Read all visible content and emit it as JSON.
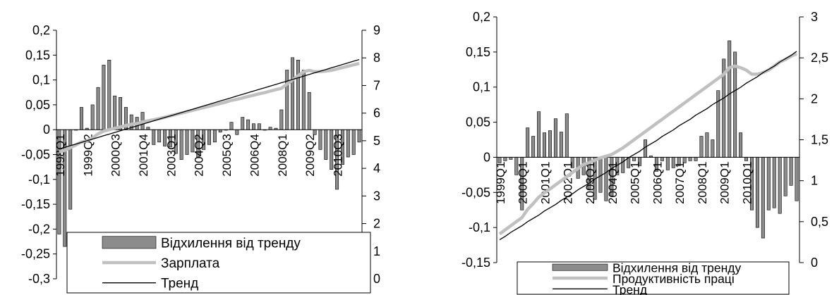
{
  "chart_data": [
    {
      "type": "bar",
      "title": "",
      "ylim_left": [
        -0.3,
        0.2
      ],
      "yticks_left": [
        "0,2",
        "0,15",
        "0,1",
        "0,05",
        "0",
        "-0,05",
        "-0,1",
        "-0,15",
        "-0,2",
        "-0,25",
        "-0,3"
      ],
      "ylim_right": [
        0,
        9
      ],
      "yticks_right": [
        "9",
        "8",
        "7",
        "6",
        "5",
        "4",
        "3",
        "2",
        "1",
        "0"
      ],
      "x_tick_labels": [
        "1998Q1",
        "1999Q2",
        "2000Q3",
        "2001Q4",
        "2003Q1",
        "2004Q2",
        "2005Q3",
        "2006Q4",
        "2008Q1",
        "2009Q2",
        "2010Q3"
      ],
      "x_tick_index": [
        0,
        5,
        10,
        15,
        20,
        25,
        30,
        35,
        40,
        45,
        50
      ],
      "legend": [
        "Відхилення від тренду",
        "Зарплата",
        "Тренд"
      ],
      "series": [
        {
          "name": "Відхилення від тренду",
          "axis": "left",
          "values": [
            -0.21,
            -0.235,
            -0.16,
            0.0,
            0.045,
            0.003,
            0.05,
            0.085,
            0.13,
            0.14,
            0.068,
            0.065,
            0.045,
            0.03,
            0.025,
            0.035,
            0.005,
            -0.03,
            -0.025,
            -0.033,
            -0.035,
            -0.048,
            -0.06,
            -0.05,
            -0.045,
            -0.055,
            -0.04,
            -0.03,
            -0.025,
            -0.005,
            0.0,
            0.015,
            -0.01,
            0.025,
            0.02,
            0.012,
            0.012,
            0.0,
            0.005,
            0.003,
            0.04,
            0.12,
            0.145,
            0.14,
            0.12,
            0.075,
            -0.01,
            -0.04,
            -0.06,
            -0.08,
            -0.12,
            -0.07,
            -0.055,
            -0.05,
            -0.025
          ]
        },
        {
          "name": "Зарплата",
          "axis": "right",
          "values": [
            4.6,
            4.65,
            4.75,
            4.85,
            4.95,
            5.0,
            5.1,
            5.25,
            5.35,
            5.4,
            5.45,
            5.5,
            5.55,
            5.6,
            5.62,
            5.68,
            5.72,
            5.76,
            5.8,
            5.85,
            5.9,
            5.95,
            6.0,
            6.05,
            6.1,
            6.15,
            6.2,
            6.25,
            6.3,
            6.35,
            6.4,
            6.46,
            6.5,
            6.55,
            6.6,
            6.65,
            6.7,
            6.74,
            6.8,
            6.85,
            6.9,
            7.05,
            7.2,
            7.35,
            7.5,
            7.55,
            7.5,
            7.5,
            7.52,
            7.55,
            7.6,
            7.65,
            7.7,
            7.75,
            7.8
          ]
        },
        {
          "name": "Тренд",
          "axis": "right",
          "values": [
            4.7,
            4.76,
            4.82,
            4.88,
            4.94,
            5.0,
            5.06,
            5.12,
            5.18,
            5.24,
            5.3,
            5.36,
            5.42,
            5.48,
            5.54,
            5.6,
            5.66,
            5.72,
            5.78,
            5.84,
            5.9,
            5.96,
            6.02,
            6.08,
            6.14,
            6.2,
            6.26,
            6.32,
            6.38,
            6.44,
            6.5,
            6.56,
            6.62,
            6.68,
            6.74,
            6.8,
            6.86,
            6.92,
            6.98,
            7.04,
            7.1,
            7.16,
            7.22,
            7.28,
            7.34,
            7.4,
            7.46,
            7.52,
            7.58,
            7.64,
            7.7,
            7.76,
            7.82,
            7.88,
            7.94
          ]
        }
      ]
    },
    {
      "type": "bar",
      "title": "",
      "ylim_left": [
        -0.15,
        0.2
      ],
      "yticks_left": [
        "0,2",
        "0,15",
        "0,1",
        "0,05",
        "0",
        "-0,05",
        "-0,1",
        "-0,15"
      ],
      "ylim_right": [
        0,
        3
      ],
      "yticks_right": [
        "3",
        "2,5",
        "2",
        "1,5",
        "1",
        "0,5",
        "0"
      ],
      "x_tick_labels": [
        "1999Q1",
        "2000Q1",
        "2001Q1",
        "2002Q1",
        "2003Q1",
        "2004Q1",
        "2005Q1",
        "2006Q1",
        "2007Q1",
        "2008Q1",
        "2009Q1",
        "2010Q1"
      ],
      "x_tick_index": [
        0,
        4,
        8,
        12,
        16,
        20,
        24,
        28,
        32,
        36,
        40,
        44
      ],
      "legend": [
        "Відхилення від тренду",
        "Продуктивність праці",
        "Тренд"
      ],
      "series": [
        {
          "name": "Відхилення від тренду",
          "axis": "left",
          "values": [
            -0.008,
            -0.005,
            -0.003,
            -0.025,
            -0.075,
            0.042,
            0.03,
            0.065,
            0.035,
            0.038,
            0.055,
            0.036,
            0.062,
            -0.015,
            -0.03,
            -0.025,
            -0.045,
            -0.06,
            -0.05,
            -0.062,
            -0.055,
            -0.025,
            -0.022,
            -0.015,
            -0.005,
            -0.012,
            0.025,
            0.002,
            -0.02,
            -0.005,
            -0.018,
            -0.015,
            -0.012,
            -0.008,
            -0.005,
            -0.005,
            0.03,
            0.035,
            0.025,
            0.095,
            0.14,
            0.166,
            0.15,
            0.035,
            -0.005,
            -0.075,
            -0.1,
            -0.115,
            -0.075,
            -0.072,
            -0.08,
            -0.055,
            -0.04,
            -0.062
          ]
        },
        {
          "name": "Продуктивність праці",
          "axis": "right",
          "values": [
            0.35,
            0.4,
            0.45,
            0.5,
            0.55,
            0.65,
            0.72,
            0.8,
            0.85,
            0.9,
            0.95,
            1.0,
            1.05,
            1.1,
            1.15,
            1.2,
            1.22,
            1.25,
            1.28,
            1.3,
            1.32,
            1.36,
            1.4,
            1.45,
            1.5,
            1.55,
            1.6,
            1.65,
            1.7,
            1.75,
            1.8,
            1.85,
            1.9,
            1.95,
            2.0,
            2.05,
            2.1,
            2.15,
            2.2,
            2.25,
            2.3,
            2.38,
            2.4,
            2.38,
            2.35,
            2.3,
            2.3,
            2.32,
            2.35,
            2.4,
            2.45,
            2.48,
            2.52,
            2.55
          ]
        },
        {
          "name": "Тренд",
          "axis": "right",
          "values": [
            0.28,
            0.32,
            0.37,
            0.41,
            0.45,
            0.5,
            0.54,
            0.58,
            0.63,
            0.67,
            0.71,
            0.76,
            0.8,
            0.84,
            0.89,
            0.93,
            0.97,
            1.02,
            1.06,
            1.1,
            1.15,
            1.19,
            1.23,
            1.28,
            1.32,
            1.36,
            1.41,
            1.45,
            1.49,
            1.54,
            1.58,
            1.62,
            1.67,
            1.71,
            1.75,
            1.8,
            1.84,
            1.88,
            1.93,
            1.97,
            2.01,
            2.06,
            2.1,
            2.14,
            2.19,
            2.23,
            2.27,
            2.32,
            2.36,
            2.4,
            2.45,
            2.49,
            2.53,
            2.58
          ]
        }
      ]
    }
  ]
}
